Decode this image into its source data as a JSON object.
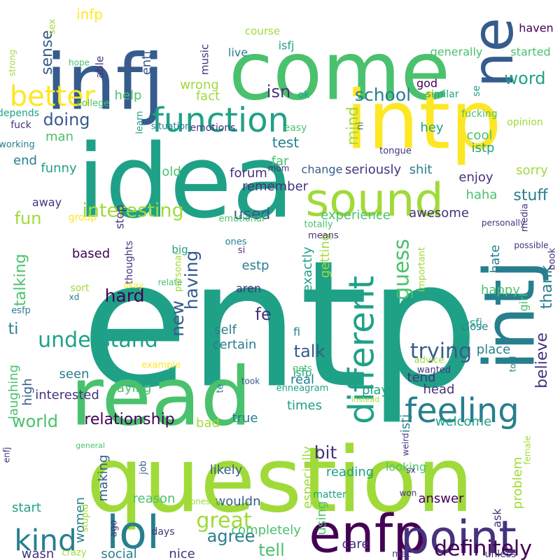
{
  "background": "#ffffff",
  "palette": {
    "purple": "#440154",
    "indigo": "#46327e",
    "blue": "#365c8d",
    "steel": "#277f8e",
    "teal": "#1fa187",
    "green": "#4ac16d",
    "lime": "#a0da39",
    "yellow": "#fde725"
  },
  "words": [
    {
      "text": "entp",
      "color": "#1fa187"
    },
    {
      "text": "question",
      "color": "#a0da39"
    },
    {
      "text": "idea",
      "color": "#1fa187"
    },
    {
      "text": "come",
      "color": "#4ac16d"
    },
    {
      "text": "read",
      "color": "#4ac16d"
    },
    {
      "text": "intp",
      "color": "#fde725"
    },
    {
      "text": "infj",
      "color": "#365c8d"
    },
    {
      "text": "intj",
      "color": "#277f8e"
    },
    {
      "text": "ne",
      "color": "#365c8d"
    },
    {
      "text": "enfp",
      "color": "#440154"
    },
    {
      "text": "point",
      "color": "#46327e"
    },
    {
      "text": "lol",
      "color": "#277f8e"
    },
    {
      "text": "sound",
      "color": "#a0da39"
    },
    {
      "text": "function",
      "color": "#1fa187"
    },
    {
      "text": "different",
      "color": "#1fa187"
    },
    {
      "text": "feeling",
      "color": "#277f8e"
    },
    {
      "text": "kind",
      "color": "#277f8e"
    },
    {
      "text": "better",
      "color": "#fde725"
    },
    {
      "text": "definitely",
      "color": "#440154"
    },
    {
      "text": "great",
      "color": "#a0da39"
    },
    {
      "text": "understand",
      "color": "#1fa187"
    },
    {
      "text": "trying",
      "color": "#365c8d"
    },
    {
      "text": "guess",
      "color": "#4ac16d"
    },
    {
      "text": "interesting",
      "color": "#a0da39"
    },
    {
      "text": "word",
      "color": "#1fa187"
    },
    {
      "text": "school",
      "color": "#277f8e"
    },
    {
      "text": "world",
      "color": "#4ac16d"
    },
    {
      "text": "talk",
      "color": "#365c8d"
    },
    {
      "text": "bit",
      "color": "#46327e"
    },
    {
      "text": "mind",
      "color": "#a0da39"
    },
    {
      "text": "doing",
      "color": "#365c8d"
    },
    {
      "text": "fun",
      "color": "#a0da39"
    },
    {
      "text": "hard",
      "color": "#440154"
    },
    {
      "text": "having",
      "color": "#365c8d"
    },
    {
      "text": "new",
      "color": "#365c8d"
    },
    {
      "text": "believe",
      "color": "#46327e"
    },
    {
      "text": "agree",
      "color": "#277f8e"
    },
    {
      "text": "tell",
      "color": "#4ac16d"
    },
    {
      "text": "isn",
      "color": "#46327e"
    },
    {
      "text": "sense",
      "color": "#365c8d"
    },
    {
      "text": "used",
      "color": "#365c8d"
    },
    {
      "text": "talking",
      "color": "#4ac16d"
    },
    {
      "text": "relationship",
      "color": "#440154"
    },
    {
      "text": "infp",
      "color": "#fde725"
    },
    {
      "text": "fe",
      "color": "#46327e"
    },
    {
      "text": "ti",
      "color": "#277f8e"
    },
    {
      "text": "thank",
      "color": "#277f8e"
    },
    {
      "text": "stuff",
      "color": "#277f8e"
    },
    {
      "text": "test",
      "color": "#277f8e"
    },
    {
      "text": "help",
      "color": "#4ac16d"
    },
    {
      "text": "entj",
      "color": "#365c8d"
    },
    {
      "text": "social",
      "color": "#277f8e"
    },
    {
      "text": "start",
      "color": "#1fa187"
    },
    {
      "text": "forum",
      "color": "#46327e"
    },
    {
      "text": "wrong",
      "color": "#a0da39"
    },
    {
      "text": "fact",
      "color": "#a0da39"
    },
    {
      "text": "cool",
      "color": "#4ac16d"
    },
    {
      "text": "hey",
      "color": "#1fa187"
    },
    {
      "text": "istp",
      "color": "#1fa187"
    },
    {
      "text": "enjoy",
      "color": "#46327e"
    },
    {
      "text": "sorry",
      "color": "#a0da39"
    },
    {
      "text": "haha",
      "color": "#4ac16d"
    },
    {
      "text": "experience",
      "color": "#4ac16d"
    },
    {
      "text": "awesome",
      "color": "#46327e"
    },
    {
      "text": "tend",
      "color": "#46327e"
    },
    {
      "text": "place",
      "color": "#277f8e"
    },
    {
      "text": "happy",
      "color": "#4ac16d"
    },
    {
      "text": "hate",
      "color": "#277f8e"
    },
    {
      "text": "estp",
      "color": "#277f8e"
    },
    {
      "text": "exactly",
      "color": "#1fa187"
    },
    {
      "text": "getting",
      "color": "#a0da39"
    },
    {
      "text": "self",
      "color": "#277f8e"
    },
    {
      "text": "certain",
      "color": "#277f8e"
    },
    {
      "text": "real",
      "color": "#277f8e"
    },
    {
      "text": "times",
      "color": "#1fa187"
    },
    {
      "text": "play",
      "color": "#1fa187"
    },
    {
      "text": "head",
      "color": "#46327e"
    },
    {
      "text": "welcome",
      "color": "#1fa187"
    },
    {
      "text": "istj",
      "color": "#277f8e"
    },
    {
      "text": "reading",
      "color": "#1fa187"
    },
    {
      "text": "answer",
      "color": "#440154"
    },
    {
      "text": "problem",
      "color": "#a0da39"
    },
    {
      "text": "true",
      "color": "#277f8e"
    },
    {
      "text": "bad",
      "color": "#a0da39"
    },
    {
      "text": "wouldn",
      "color": "#365c8d"
    },
    {
      "text": "likely",
      "color": "#365c8d"
    },
    {
      "text": "reason",
      "color": "#4ac16d"
    },
    {
      "text": "care",
      "color": "#46327e"
    },
    {
      "text": "completely",
      "color": "#4ac16d"
    },
    {
      "text": "wasn",
      "color": "#46327e"
    },
    {
      "text": "nice",
      "color": "#46327e"
    },
    {
      "text": "making",
      "color": "#365c8d"
    },
    {
      "text": "women",
      "color": "#277f8e"
    },
    {
      "text": "interested",
      "color": "#46327e"
    },
    {
      "text": "high",
      "color": "#365c8d"
    },
    {
      "text": "laughing",
      "color": "#4ac16d"
    },
    {
      "text": "saying",
      "color": "#4ac16d"
    },
    {
      "text": "seen",
      "color": "#277f8e"
    },
    {
      "text": "using",
      "color": "#4ac16d"
    },
    {
      "text": "especially",
      "color": "#a0da39"
    },
    {
      "text": "looking",
      "color": "#4ac16d"
    },
    {
      "text": "ask",
      "color": "#46327e"
    },
    {
      "text": "matter",
      "color": "#1fa187"
    },
    {
      "text": "seriously",
      "color": "#46327e"
    },
    {
      "text": "shit",
      "color": "#277f8e"
    },
    {
      "text": "change",
      "color": "#365c8d"
    },
    {
      "text": "remember",
      "color": "#46327e"
    },
    {
      "text": "far",
      "color": "#4ac16d"
    },
    {
      "text": "old",
      "color": "#4ac16d"
    },
    {
      "text": "funny",
      "color": "#1fa187"
    },
    {
      "text": "end",
      "color": "#277f8e"
    },
    {
      "text": "man",
      "color": "#4ac16d"
    },
    {
      "text": "stop",
      "color": "#46327e"
    },
    {
      "text": "away",
      "color": "#46327e"
    },
    {
      "text": "based",
      "color": "#440154"
    },
    {
      "text": "big",
      "color": "#1fa187"
    },
    {
      "text": "sort",
      "color": "#a0da39"
    },
    {
      "text": "aren",
      "color": "#46327e"
    },
    {
      "text": "fi",
      "color": "#277f8e"
    },
    {
      "text": "close",
      "color": "#277f8e"
    },
    {
      "text": "esfj",
      "color": "#1fa187"
    },
    {
      "text": "girl",
      "color": "#4ac16d"
    },
    {
      "text": "isfp",
      "color": "#1fa187"
    },
    {
      "text": "isfj",
      "color": "#1fa187"
    },
    {
      "text": "live",
      "color": "#277f8e"
    },
    {
      "text": "course",
      "color": "#a0da39"
    },
    {
      "text": "able",
      "color": "#46327e"
    },
    {
      "text": "music",
      "color": "#46327e"
    },
    {
      "text": "generally",
      "color": "#4ac16d"
    },
    {
      "text": "started",
      "color": "#4ac16d"
    },
    {
      "text": "haven",
      "color": "#440154"
    },
    {
      "text": "god",
      "color": "#440154"
    },
    {
      "text": "ok",
      "color": "#1fa187"
    },
    {
      "text": "similar",
      "color": "#1fa187"
    },
    {
      "text": "se",
      "color": "#1fa187"
    },
    {
      "text": "fucking",
      "color": "#4ac16d"
    },
    {
      "text": "opinion",
      "color": "#a0da39"
    },
    {
      "text": "easy",
      "color": "#4ac16d"
    },
    {
      "text": "emotions",
      "color": "#46327e"
    },
    {
      "text": "situation",
      "color": "#277f8e"
    },
    {
      "text": "learn",
      "color": "#1fa187"
    },
    {
      "text": "college",
      "color": "#4ac16d"
    },
    {
      "text": "depends",
      "color": "#1fa187"
    },
    {
      "text": "fuck",
      "color": "#46327e"
    },
    {
      "text": "working",
      "color": "#277f8e"
    },
    {
      "text": "sex",
      "color": "#a0da39"
    },
    {
      "text": "strong",
      "color": "#a0da39"
    },
    {
      "text": "hope",
      "color": "#4ac16d"
    },
    {
      "text": "ni",
      "color": "#277f8e"
    },
    {
      "text": "tongue",
      "color": "#46327e"
    },
    {
      "text": "mom",
      "color": "#46327e"
    },
    {
      "text": "group",
      "color": "#fde725"
    },
    {
      "text": "emotional",
      "color": "#4ac16d"
    },
    {
      "text": "totally",
      "color": "#4ac16d"
    },
    {
      "text": "means",
      "color": "#46327e"
    },
    {
      "text": "ones",
      "color": "#277f8e"
    },
    {
      "text": "si",
      "color": "#46327e"
    },
    {
      "text": "media",
      "color": "#46327e"
    },
    {
      "text": "personally",
      "color": "#46327e"
    },
    {
      "text": "possible",
      "color": "#46327e"
    },
    {
      "text": "book",
      "color": "#46327e"
    },
    {
      "text": "important",
      "color": "#a0da39"
    },
    {
      "text": "thoughts",
      "color": "#46327e"
    },
    {
      "text": "personal",
      "color": "#a0da39"
    },
    {
      "text": "relate",
      "color": "#4ac16d"
    },
    {
      "text": "xd",
      "color": "#277f8e"
    },
    {
      "text": "okay",
      "color": "#fde725"
    },
    {
      "text": "esfp",
      "color": "#277f8e"
    },
    {
      "text": "example",
      "color": "#fde725"
    },
    {
      "text": "took",
      "color": "#365c8d"
    },
    {
      "text": "gets",
      "color": "#4ac16d"
    },
    {
      "text": "advice",
      "color": "#a0da39"
    },
    {
      "text": "wanted",
      "color": "#46327e"
    },
    {
      "text": "told",
      "color": "#277f8e"
    },
    {
      "text": "enneagram",
      "color": "#1fa187"
    },
    {
      "text": "instead",
      "color": "#a0da39"
    },
    {
      "text": "te",
      "color": "#277f8e"
    },
    {
      "text": "general",
      "color": "#4ac16d"
    },
    {
      "text": "enfj",
      "color": "#46327e"
    },
    {
      "text": "job",
      "color": "#365c8d"
    },
    {
      "text": "honestly",
      "color": "#a0da39"
    },
    {
      "text": "stupid",
      "color": "#a0da39"
    },
    {
      "text": "ago",
      "color": "#46327e"
    },
    {
      "text": "days",
      "color": "#46327e"
    },
    {
      "text": "crazy",
      "color": "#a0da39"
    },
    {
      "text": "weird",
      "color": "#46327e"
    },
    {
      "text": "sx",
      "color": "#46327e"
    },
    {
      "text": "won",
      "color": "#46327e"
    },
    {
      "text": "female",
      "color": "#a0da39"
    },
    {
      "text": "met",
      "color": "#46327e"
    },
    {
      "text": "unless",
      "color": "#46327e"
    },
    {
      "text": "conversation",
      "color": "#a0da39"
    }
  ]
}
